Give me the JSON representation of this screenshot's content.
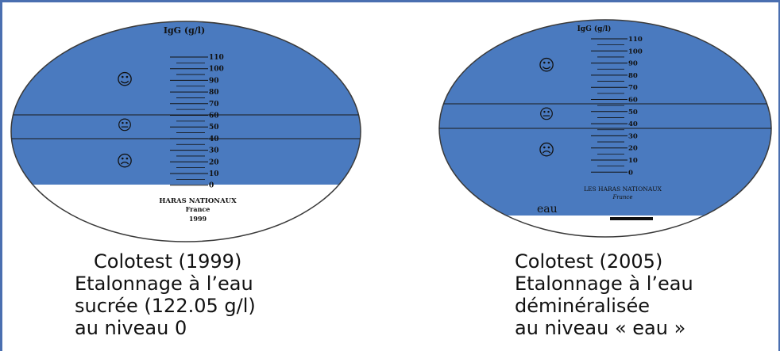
{
  "colors": {
    "blue": "#4a7abf",
    "outline": "#3a3a3a",
    "text": "#111111",
    "frame": "#4a6fb0"
  },
  "colotest_1999": {
    "title": "IgG (g/l)",
    "scale": [
      110,
      100,
      90,
      80,
      70,
      60,
      50,
      40,
      30,
      20,
      10,
      0
    ],
    "face_good": "☺",
    "face_neutral": "😐",
    "face_bad": "☹",
    "maker_line1": "HARAS NATIONAUX",
    "maker_line2": "France",
    "maker_line3": "1999"
  },
  "colotest_2005": {
    "title": "IgG (g/l)",
    "scale": [
      110,
      100,
      90,
      80,
      70,
      60,
      50,
      40,
      30,
      20,
      10,
      0
    ],
    "face_good": "☺",
    "face_neutral": "😐",
    "face_bad": "☹",
    "maker_line1": "LES HARAS NATIONAUX",
    "maker_line2": "France",
    "water_label": "eau"
  },
  "captions": {
    "left": [
      "Colotest (1999)",
      "Etalonnage à l’eau",
      "sucrée (122.05 g/l)",
      "au niveau 0"
    ],
    "right": [
      "Colotest (2005)",
      "Etalonnage à l’eau",
      "déminéralisée",
      "au niveau « eau »"
    ]
  }
}
